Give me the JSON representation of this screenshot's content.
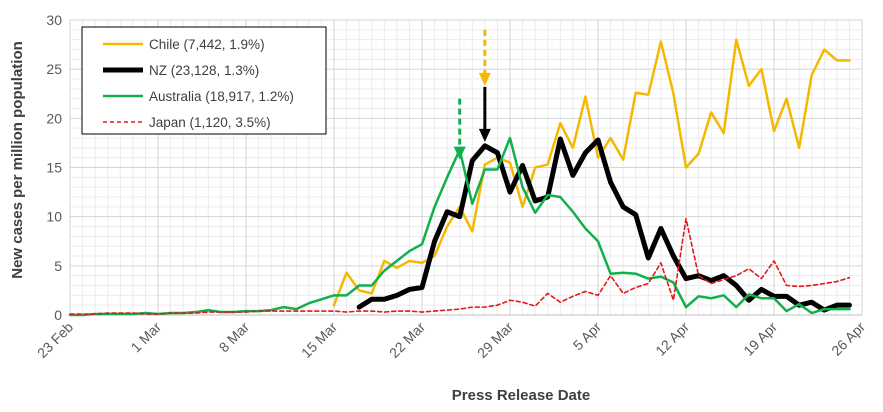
{
  "chart_data": {
    "type": "line",
    "title": "",
    "xlabel": "Press Release Date",
    "ylabel": "New cases per million population",
    "ylim": [
      0,
      30
    ],
    "yticks": [
      0,
      5,
      10,
      15,
      20,
      25,
      30
    ],
    "xlim": [
      "2020-02-23",
      "2020-04-26"
    ],
    "xtick_labels": [
      "23 Feb",
      "1 Mar",
      "8 Mar",
      "15 Mar",
      "22 Mar",
      "29 Mar",
      "5 Apr",
      "12 Apr",
      "19 Apr",
      "26 Apr"
    ],
    "grid": "on",
    "legend_position": "top-left",
    "series": [
      {
        "name": "Chile (7,442, 1.9%)",
        "color": "#f5b800",
        "style": "solid",
        "x": [
          "2020-03-15",
          "2020-03-16",
          "2020-03-17",
          "2020-03-18",
          "2020-03-19",
          "2020-03-20",
          "2020-03-21",
          "2020-03-22",
          "2020-03-23",
          "2020-03-24",
          "2020-03-25",
          "2020-03-26",
          "2020-03-27",
          "2020-03-28",
          "2020-03-29",
          "2020-03-30",
          "2020-03-31",
          "2020-04-01",
          "2020-04-02",
          "2020-04-03",
          "2020-04-04",
          "2020-04-05",
          "2020-04-06",
          "2020-04-07",
          "2020-04-08",
          "2020-04-09",
          "2020-04-10",
          "2020-04-11",
          "2020-04-12",
          "2020-04-13",
          "2020-04-14",
          "2020-04-15",
          "2020-04-16",
          "2020-04-17",
          "2020-04-18",
          "2020-04-19",
          "2020-04-20",
          "2020-04-21",
          "2020-04-22",
          "2020-04-23",
          "2020-04-24",
          "2020-04-25"
        ],
        "values": [
          1.0,
          4.3,
          2.5,
          2.2,
          5.5,
          4.8,
          5.5,
          5.3,
          6.0,
          9.0,
          11.0,
          8.5,
          15.3,
          16.0,
          15.5,
          11.0,
          15.0,
          15.3,
          19.5,
          17.0,
          22.2,
          16.0,
          18.0,
          15.8,
          22.6,
          22.4,
          27.8,
          22.5,
          15.0,
          16.4,
          20.6,
          18.5,
          28.0,
          23.3,
          25.0,
          18.7,
          22.0,
          17.0,
          24.4,
          27.0,
          25.9,
          25.9
        ]
      },
      {
        "name": "NZ (23,128, 1.3%)",
        "color": "#000000",
        "style": "solid-thick",
        "x": [
          "2020-03-17",
          "2020-03-18",
          "2020-03-19",
          "2020-03-20",
          "2020-03-21",
          "2020-03-22",
          "2020-03-23",
          "2020-03-24",
          "2020-03-25",
          "2020-03-26",
          "2020-03-27",
          "2020-03-28",
          "2020-03-29",
          "2020-03-30",
          "2020-03-31",
          "2020-04-01",
          "2020-04-02",
          "2020-04-03",
          "2020-04-04",
          "2020-04-05",
          "2020-04-06",
          "2020-04-07",
          "2020-04-08",
          "2020-04-09",
          "2020-04-10",
          "2020-04-11",
          "2020-04-12",
          "2020-04-13",
          "2020-04-14",
          "2020-04-15",
          "2020-04-16",
          "2020-04-17",
          "2020-04-18",
          "2020-04-19",
          "2020-04-20",
          "2020-04-21",
          "2020-04-22",
          "2020-04-23",
          "2020-04-24",
          "2020-04-25"
        ],
        "values": [
          0.8,
          1.6,
          1.6,
          2.0,
          2.6,
          2.8,
          7.5,
          10.5,
          10.0,
          15.7,
          17.2,
          16.5,
          12.5,
          15.2,
          11.6,
          12.0,
          17.9,
          14.2,
          16.5,
          17.8,
          13.5,
          11.0,
          10.2,
          5.8,
          8.8,
          6.0,
          3.7,
          4.0,
          3.5,
          4.0,
          3.0,
          1.5,
          2.6,
          1.9,
          1.9,
          1.0,
          1.3,
          0.5,
          1.0,
          1.0
        ]
      },
      {
        "name": "Australia (18,917, 1.2%)",
        "color": "#11b04d",
        "style": "solid",
        "x": [
          "2020-02-23",
          "2020-02-24",
          "2020-02-25",
          "2020-02-26",
          "2020-02-27",
          "2020-02-28",
          "2020-02-29",
          "2020-03-01",
          "2020-03-02",
          "2020-03-03",
          "2020-03-04",
          "2020-03-05",
          "2020-03-06",
          "2020-03-07",
          "2020-03-08",
          "2020-03-09",
          "2020-03-10",
          "2020-03-11",
          "2020-03-12",
          "2020-03-13",
          "2020-03-14",
          "2020-03-15",
          "2020-03-16",
          "2020-03-17",
          "2020-03-18",
          "2020-03-19",
          "2020-03-20",
          "2020-03-21",
          "2020-03-22",
          "2020-03-23",
          "2020-03-24",
          "2020-03-25",
          "2020-03-26",
          "2020-03-27",
          "2020-03-28",
          "2020-03-29",
          "2020-03-30",
          "2020-03-31",
          "2020-04-01",
          "2020-04-02",
          "2020-04-03",
          "2020-04-04",
          "2020-04-05",
          "2020-04-06",
          "2020-04-07",
          "2020-04-08",
          "2020-04-09",
          "2020-04-10",
          "2020-04-11",
          "2020-04-12",
          "2020-04-13",
          "2020-04-14",
          "2020-04-15",
          "2020-04-16",
          "2020-04-17",
          "2020-04-18",
          "2020-04-19",
          "2020-04-20",
          "2020-04-21",
          "2020-04-22",
          "2020-04-23",
          "2020-04-24",
          "2020-04-25"
        ],
        "values": [
          0.0,
          0.0,
          0.1,
          0.1,
          0.1,
          0.1,
          0.2,
          0.1,
          0.2,
          0.2,
          0.3,
          0.5,
          0.3,
          0.3,
          0.4,
          0.4,
          0.5,
          0.8,
          0.6,
          1.2,
          1.6,
          2.0,
          2.0,
          3.0,
          3.0,
          4.5,
          5.5,
          6.5,
          7.2,
          11.0,
          14.0,
          16.8,
          11.3,
          14.8,
          14.8,
          18.0,
          13.0,
          10.4,
          12.2,
          12.0,
          10.5,
          8.8,
          7.5,
          4.2,
          4.3,
          4.2,
          3.7,
          3.9,
          3.3,
          0.8,
          1.9,
          1.7,
          2.0,
          0.8,
          2.1,
          1.7,
          1.7,
          0.4,
          1.1,
          0.2,
          0.6,
          0.6,
          0.6
        ]
      },
      {
        "name": "Japan (1,120, 3.5%)",
        "color": "#e0191b",
        "style": "dashed",
        "x": [
          "2020-02-23",
          "2020-02-24",
          "2020-02-25",
          "2020-02-26",
          "2020-02-27",
          "2020-02-28",
          "2020-02-29",
          "2020-03-01",
          "2020-03-02",
          "2020-03-03",
          "2020-03-04",
          "2020-03-05",
          "2020-03-06",
          "2020-03-07",
          "2020-03-08",
          "2020-03-09",
          "2020-03-10",
          "2020-03-11",
          "2020-03-12",
          "2020-03-13",
          "2020-03-14",
          "2020-03-15",
          "2020-03-16",
          "2020-03-17",
          "2020-03-18",
          "2020-03-19",
          "2020-03-20",
          "2020-03-21",
          "2020-03-22",
          "2020-03-23",
          "2020-03-24",
          "2020-03-25",
          "2020-03-26",
          "2020-03-27",
          "2020-03-28",
          "2020-03-29",
          "2020-03-30",
          "2020-03-31",
          "2020-04-01",
          "2020-04-02",
          "2020-04-03",
          "2020-04-04",
          "2020-04-05",
          "2020-04-06",
          "2020-04-07",
          "2020-04-08",
          "2020-04-09",
          "2020-04-10",
          "2020-04-11",
          "2020-04-12",
          "2020-04-13",
          "2020-04-14",
          "2020-04-15",
          "2020-04-16",
          "2020-04-17",
          "2020-04-18",
          "2020-04-19",
          "2020-04-20",
          "2020-04-21",
          "2020-04-22",
          "2020-04-23",
          "2020-04-24",
          "2020-04-25"
        ],
        "values": [
          0.1,
          0.1,
          0.1,
          0.2,
          0.2,
          0.2,
          0.1,
          0.1,
          0.2,
          0.2,
          0.2,
          0.3,
          0.3,
          0.3,
          0.3,
          0.4,
          0.4,
          0.4,
          0.4,
          0.4,
          0.4,
          0.4,
          0.3,
          0.4,
          0.4,
          0.3,
          0.4,
          0.4,
          0.3,
          0.4,
          0.5,
          0.6,
          0.8,
          0.8,
          1.0,
          1.5,
          1.3,
          0.9,
          2.2,
          1.3,
          1.9,
          2.4,
          2.0,
          4.0,
          2.2,
          2.8,
          3.2,
          5.3,
          1.5,
          9.8,
          4.0,
          3.2,
          3.6,
          4.0,
          4.7,
          3.7,
          5.5,
          3.0,
          2.9,
          3.0,
          3.2,
          3.4,
          3.8
        ]
      }
    ],
    "annotations": [
      {
        "type": "arrow",
        "style": "dashed",
        "color": "#11b04d",
        "x": "2020-03-25",
        "y_from": 22.0,
        "y_to": 15.8
      },
      {
        "type": "arrow",
        "style": "dashed",
        "color": "#f5b800",
        "x": "2020-03-27",
        "y_from": 29.0,
        "y_to": 23.3
      },
      {
        "type": "arrow",
        "style": "solid",
        "color": "#000000",
        "x": "2020-03-27",
        "y_from": 23.2,
        "y_to": 17.6
      }
    ]
  }
}
